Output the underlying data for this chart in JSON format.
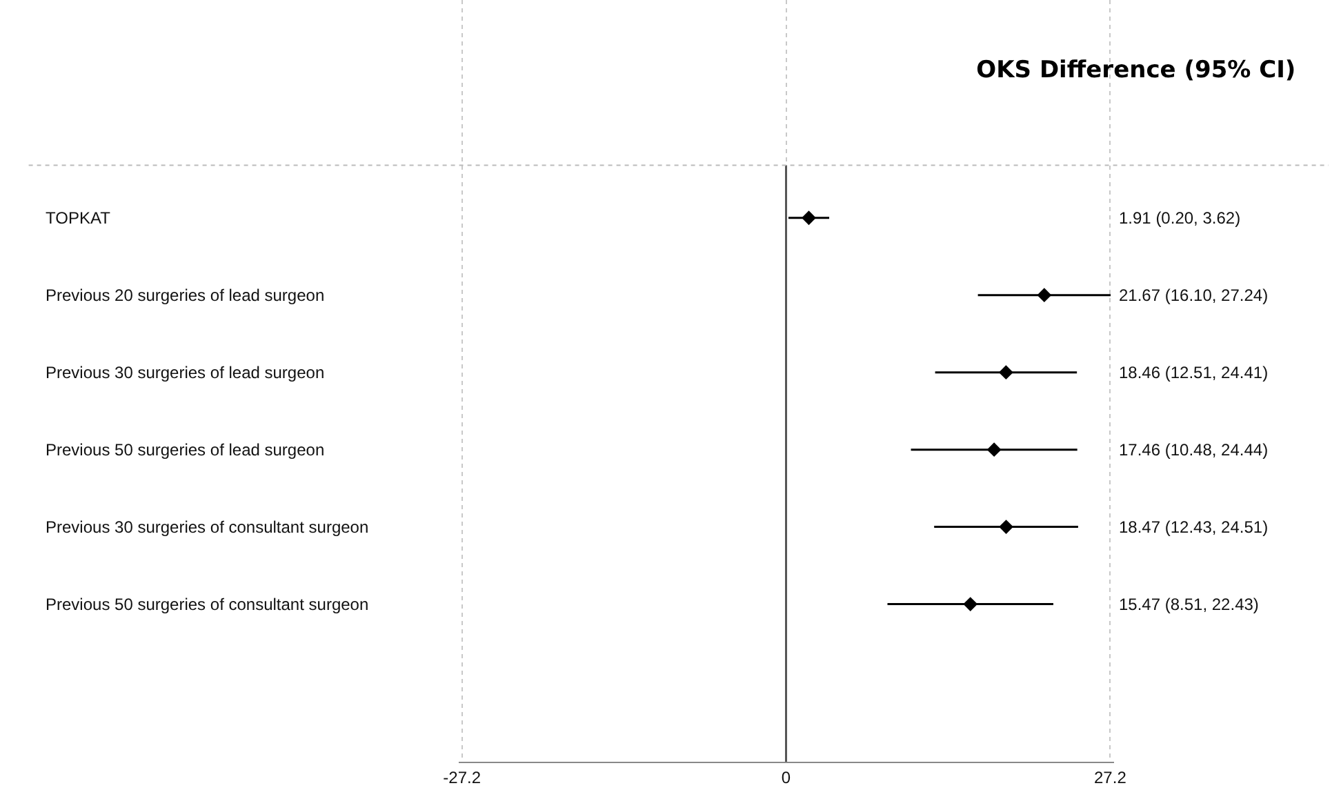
{
  "chart_data": {
    "type": "scatter",
    "orientation": "horizontal",
    "title": "OKS Difference (95% CI)",
    "categories": [
      "TOPKAT",
      "Previous 20 surgeries of lead surgeon",
      "Previous 30 surgeries of lead surgeon",
      "Previous 50 surgeries of lead surgeon",
      "Previous 30 surgeries of consultant surgeon",
      "Previous 50 surgeries of consultant surgeon"
    ],
    "series": [
      {
        "color": "#000000",
        "values": [
          1.91,
          21.67,
          18.46,
          17.46,
          18.47,
          15.47
        ],
        "errors": [
          [
            0.2,
            3.62
          ],
          [
            16.1,
            27.24
          ],
          [
            12.51,
            24.41
          ],
          [
            10.48,
            24.44
          ],
          [
            12.43,
            24.51
          ],
          [
            8.51,
            22.43
          ]
        ]
      }
    ],
    "annotations": [
      "1.91 (0.20, 3.62)",
      "21.67 (16.10, 27.24)",
      "18.46 (12.51, 24.41)",
      "17.46 (10.48, 24.44)",
      "18.47 (12.43, 24.51)",
      "15.47 (8.51, 22.43)"
    ],
    "xlim": [
      -27.5,
      27.5
    ],
    "xticks": [
      -27.2,
      0,
      27.2
    ],
    "ref_lines": [
      {
        "axis": "x",
        "value": 0,
        "color": "#555555",
        "line_style": "solid"
      }
    ],
    "grid": "x",
    "marker": "diamond",
    "tick_labels": "x"
  }
}
